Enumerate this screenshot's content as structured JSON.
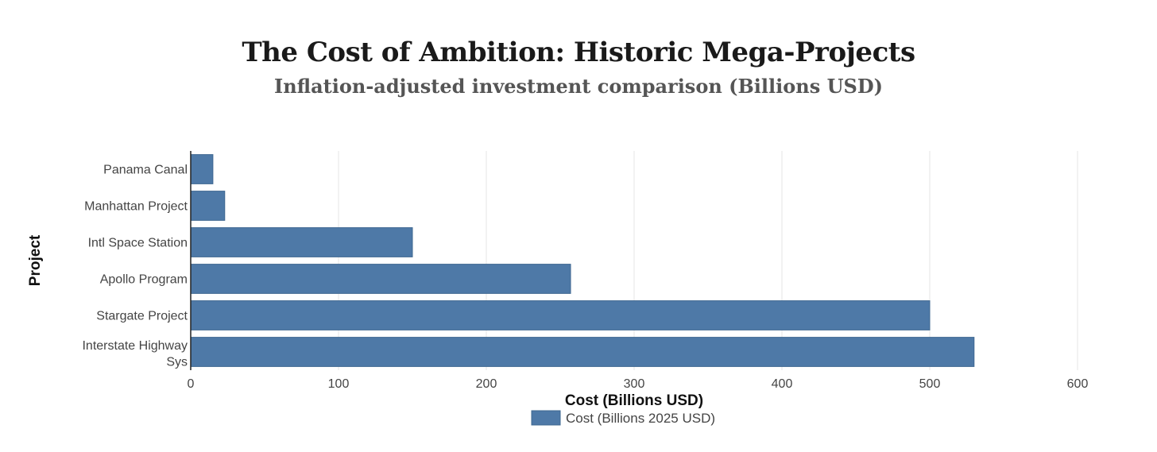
{
  "title": "The Cost of Ambition: Historic Mega-Projects",
  "subtitle": "Inflation-adjusted investment comparison (Billions USD)",
  "colors": {
    "bar": "#4e79a7",
    "bar_stroke": "#3f6891",
    "grid": "#e6e6e6",
    "axis": "#222222"
  },
  "chart_data": {
    "type": "bar",
    "orientation": "horizontal",
    "categories": [
      "Panama Canal",
      "Manhattan Project",
      "Intl Space Station",
      "Apollo Program",
      "Stargate Project",
      "Interstate Highway Sys"
    ],
    "series": [
      {
        "name": "Cost (Billions 2025 USD)",
        "values": [
          15,
          23,
          150,
          257,
          500,
          530
        ]
      }
    ],
    "xlabel": "Cost (Billions USD)",
    "ylabel": "Project",
    "xlim": [
      0,
      600
    ],
    "xticks": [
      0,
      100,
      200,
      300,
      400,
      500,
      600
    ],
    "grid": true,
    "legend": "bottom-center"
  }
}
